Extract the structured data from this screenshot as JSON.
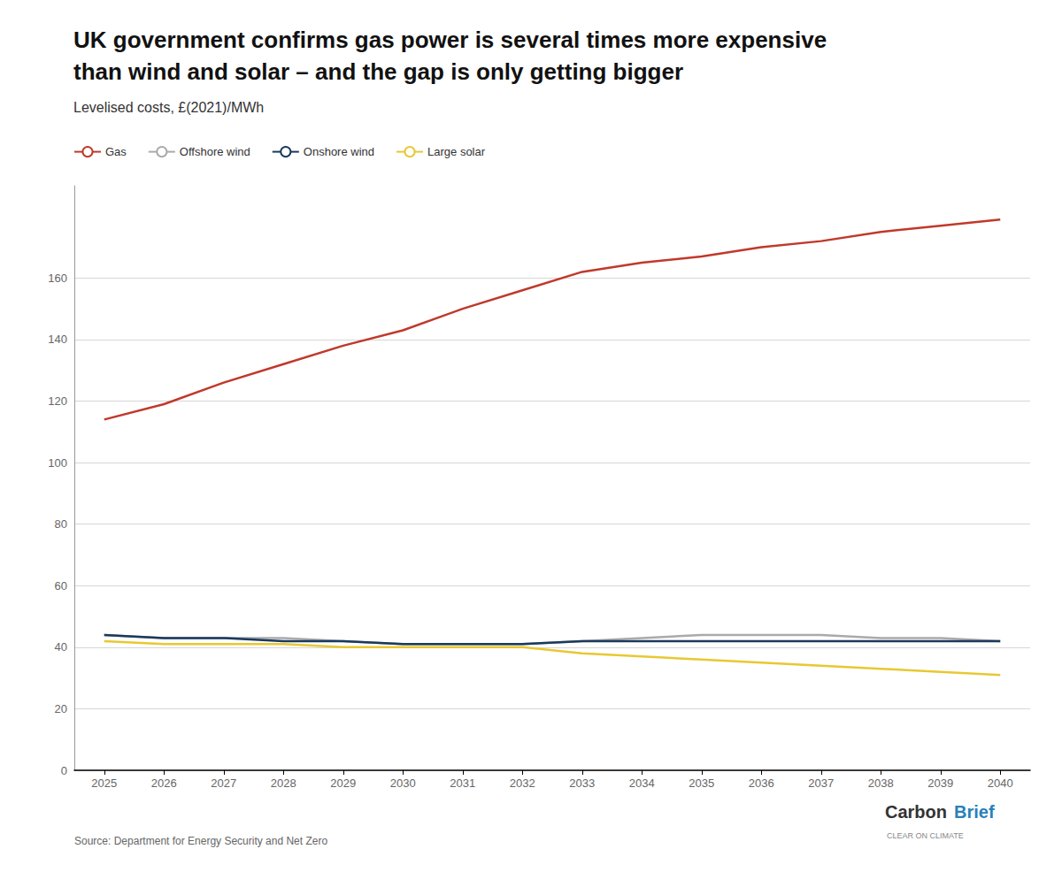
{
  "chart_data": {
    "type": "line",
    "title": "UK government confirms gas power is several times more expensive\nthan wind and solar – and the gap is only getting bigger",
    "subtitle": "Levelised costs, £(2021)/MWh",
    "source": "Source: Department for Energy Security and Net Zero",
    "annotations": [
      {
        "text": "Carbon",
        "color": "#333333"
      },
      {
        "text": "Brief",
        "color": "#2980b9"
      },
      {
        "text": "CLEAR ON CLIMATE",
        "color": "#888888"
      }
    ],
    "x": [
      2025,
      2026,
      2027,
      2028,
      2029,
      2030,
      2031,
      2032,
      2033,
      2034,
      2035,
      2036,
      2037,
      2038,
      2039,
      2040
    ],
    "xlim": [
      2024.5,
      2040.5
    ],
    "xticks": [
      2025,
      2026,
      2027,
      2028,
      2029,
      2030,
      2031,
      2032,
      2033,
      2034,
      2035,
      2036,
      2037,
      2038,
      2039,
      2040
    ],
    "series": [
      {
        "name": "Gas",
        "color": "#c0392b",
        "values": [
          114,
          119,
          126,
          132,
          138,
          143,
          150,
          156,
          162,
          165,
          167,
          170,
          172,
          175,
          177,
          179
        ]
      },
      {
        "name": "Offshore wind",
        "color": "#aaaaaa",
        "values": [
          44,
          43,
          43,
          43,
          42,
          41,
          41,
          41,
          42,
          43,
          44,
          44,
          44,
          43,
          43,
          42
        ]
      },
      {
        "name": "Onshore wind",
        "color": "#1a3a5c",
        "values": [
          44,
          43,
          43,
          42,
          42,
          41,
          41,
          41,
          42,
          42,
          42,
          42,
          42,
          42,
          42,
          42
        ]
      },
      {
        "name": "Large solar",
        "color": "#e8c832",
        "values": [
          42,
          41,
          41,
          41,
          40,
          40,
          40,
          40,
          38,
          37,
          36,
          35,
          34,
          33,
          32,
          31
        ]
      }
    ],
    "ylim": [
      0,
      190
    ],
    "yticks": [
      0,
      20,
      40,
      60,
      80,
      100,
      120,
      140,
      160
    ],
    "grid": true,
    "legend": "upper left"
  }
}
